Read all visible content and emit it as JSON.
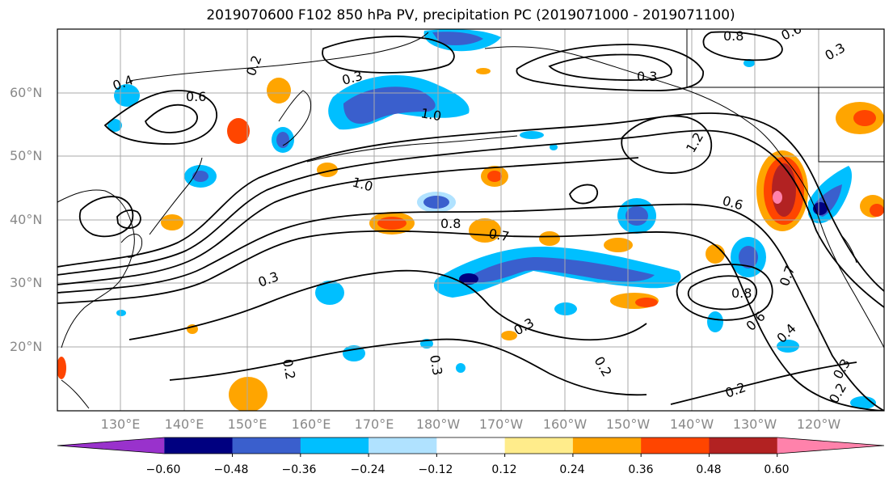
{
  "title": "2019070600 F102 850 hPa PV, precipitation PC (2019071000 - 2019071100)",
  "lat_labels": [
    "60°N",
    "50°N",
    "40°N",
    "30°N",
    "20°N"
  ],
  "lon_labels": [
    "130°E",
    "140°E",
    "150°E",
    "160°E",
    "170°E",
    "180°W",
    "170°W",
    "160°W",
    "150°W",
    "140°W",
    "130°W",
    "120°W"
  ],
  "colorbar": {
    "colors": [
      "#9932cc",
      "#000080",
      "#3a5fcd",
      "#00bfff",
      "#b0e2ff",
      "#ffffff",
      "#ffec8b",
      "#ffa500",
      "#ff4500",
      "#b22222",
      "#ff82ab"
    ],
    "tick_labels": [
      "−0.60",
      "−0.48",
      "−0.36",
      "−0.24",
      "−0.12",
      "0.12",
      "0.24",
      "0.36",
      "0.48",
      "0.60"
    ]
  },
  "contour_labels": [
    "0.4",
    "0.6",
    "0.3",
    "0.2",
    "0.3",
    "0.6",
    "0.8",
    "0.3",
    "1.0",
    "1.2",
    "1.0",
    "0.8",
    "0.7",
    "0.6",
    "0.3",
    "0.2",
    "0.2",
    "0.3",
    "0.7",
    "0.6",
    "0.4",
    "0.8",
    "0.2",
    "0.3",
    "0.2",
    "0.3"
  ]
}
